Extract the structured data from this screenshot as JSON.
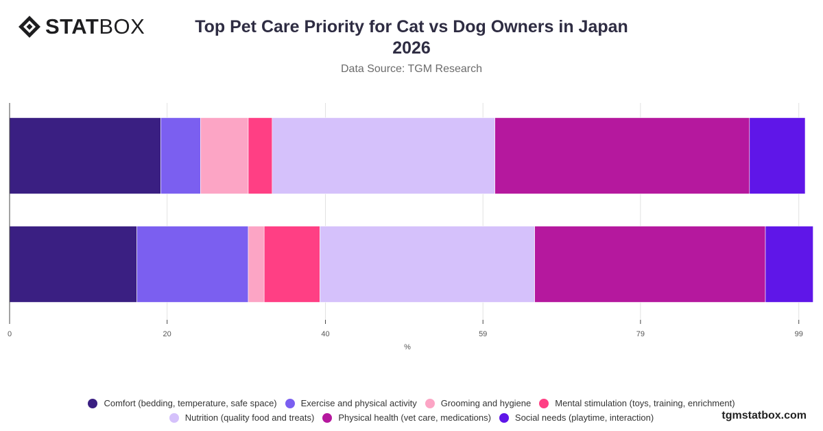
{
  "brand": {
    "logo_text_bold": "STAT",
    "logo_text_light": "BOX",
    "watermark": "tgmstatbox.com"
  },
  "header": {
    "title_line1": "Top Pet Care Priority for Cat vs Dog Owners in Japan",
    "title_line2": "2026",
    "subtitle": "Data Source: TGM Research"
  },
  "chart_data": {
    "type": "bar",
    "orientation": "horizontal",
    "stacked": true,
    "categories": [
      "",
      ""
    ],
    "xlabel": "%",
    "ylabel": "",
    "xlim": [
      0,
      100
    ],
    "x_ticks": [
      "0",
      "20",
      "40",
      "59",
      "79",
      "99"
    ],
    "x_tick_values": [
      0,
      19.8,
      39.7,
      59.5,
      79.3,
      99.2
    ],
    "grid": true,
    "legend_position": "bottom",
    "series": [
      {
        "name": "Comfort (bedding, temperature, safe space)",
        "color": "#3a1f82",
        "values": [
          19,
          16
        ]
      },
      {
        "name": "Exercise and physical activity",
        "color": "#7b5ff0",
        "values": [
          5,
          14
        ]
      },
      {
        "name": "Grooming and hygiene",
        "color": "#fca5c5",
        "values": [
          6,
          2
        ]
      },
      {
        "name": "Mental stimulation (toys, training, enrichment)",
        "color": "#ff3f84",
        "values": [
          3,
          7
        ]
      },
      {
        "name": "Nutrition (quality food and treats)",
        "color": "#d5c1fb",
        "values": [
          28,
          27
        ]
      },
      {
        "name": "Physical health (vet care, medications)",
        "color": "#b5189e",
        "values": [
          32,
          29
        ]
      },
      {
        "name": "Social needs (playtime, interaction)",
        "color": "#5f16e8",
        "values": [
          7,
          6
        ]
      }
    ]
  }
}
